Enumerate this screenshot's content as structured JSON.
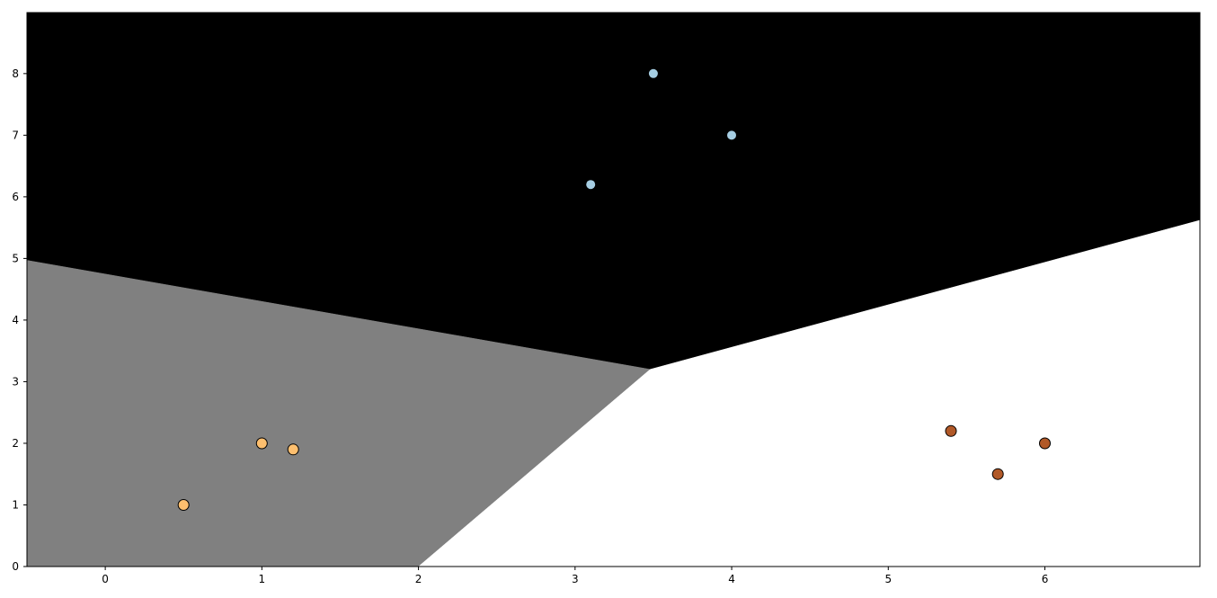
{
  "chart_data": {
    "type": "scatter",
    "title": "",
    "xlabel": "",
    "ylabel": "",
    "xlim": [
      -0.5,
      6.99
    ],
    "ylim": [
      0,
      8.99
    ],
    "grid": false,
    "xticks": [
      "0",
      "1",
      "2",
      "3",
      "4",
      "5",
      "6"
    ],
    "yticks": [
      "0",
      "1",
      "2",
      "3",
      "4",
      "5",
      "6",
      "7",
      "8"
    ],
    "regions": [
      {
        "class": "top",
        "color": "#000000",
        "polygon": [
          [
            -0.5,
            8.99
          ],
          [
            6.99,
            8.99
          ],
          [
            6.99,
            5.62
          ],
          [
            3.48,
            3.2
          ],
          [
            -0.5,
            4.97
          ]
        ]
      },
      {
        "class": "left",
        "color": "#808080",
        "polygon": [
          [
            -0.5,
            4.97
          ],
          [
            3.48,
            3.2
          ],
          [
            2.0,
            0.0
          ],
          [
            -0.5,
            0.0
          ]
        ]
      },
      {
        "class": "right",
        "color": "#ffffff",
        "polygon": [
          [
            3.48,
            3.2
          ],
          [
            6.99,
            5.62
          ],
          [
            6.99,
            0.0
          ],
          [
            2.0,
            0.0
          ]
        ]
      }
    ],
    "series": [
      {
        "color": "#a6cee3",
        "edgecolor": "none",
        "points": [
          [
            3.5,
            8.0
          ],
          [
            4.0,
            7.0
          ],
          [
            3.1,
            6.2
          ]
        ]
      },
      {
        "color": "#fdbf6f",
        "edgecolor": "#000000",
        "points": [
          [
            1.0,
            2.0
          ],
          [
            1.2,
            1.9
          ],
          [
            0.5,
            1.0
          ]
        ]
      },
      {
        "color": "#b15928",
        "edgecolor": "#000000",
        "points": [
          [
            5.4,
            2.2
          ],
          [
            5.7,
            1.5
          ],
          [
            6.0,
            2.0
          ]
        ]
      }
    ]
  }
}
